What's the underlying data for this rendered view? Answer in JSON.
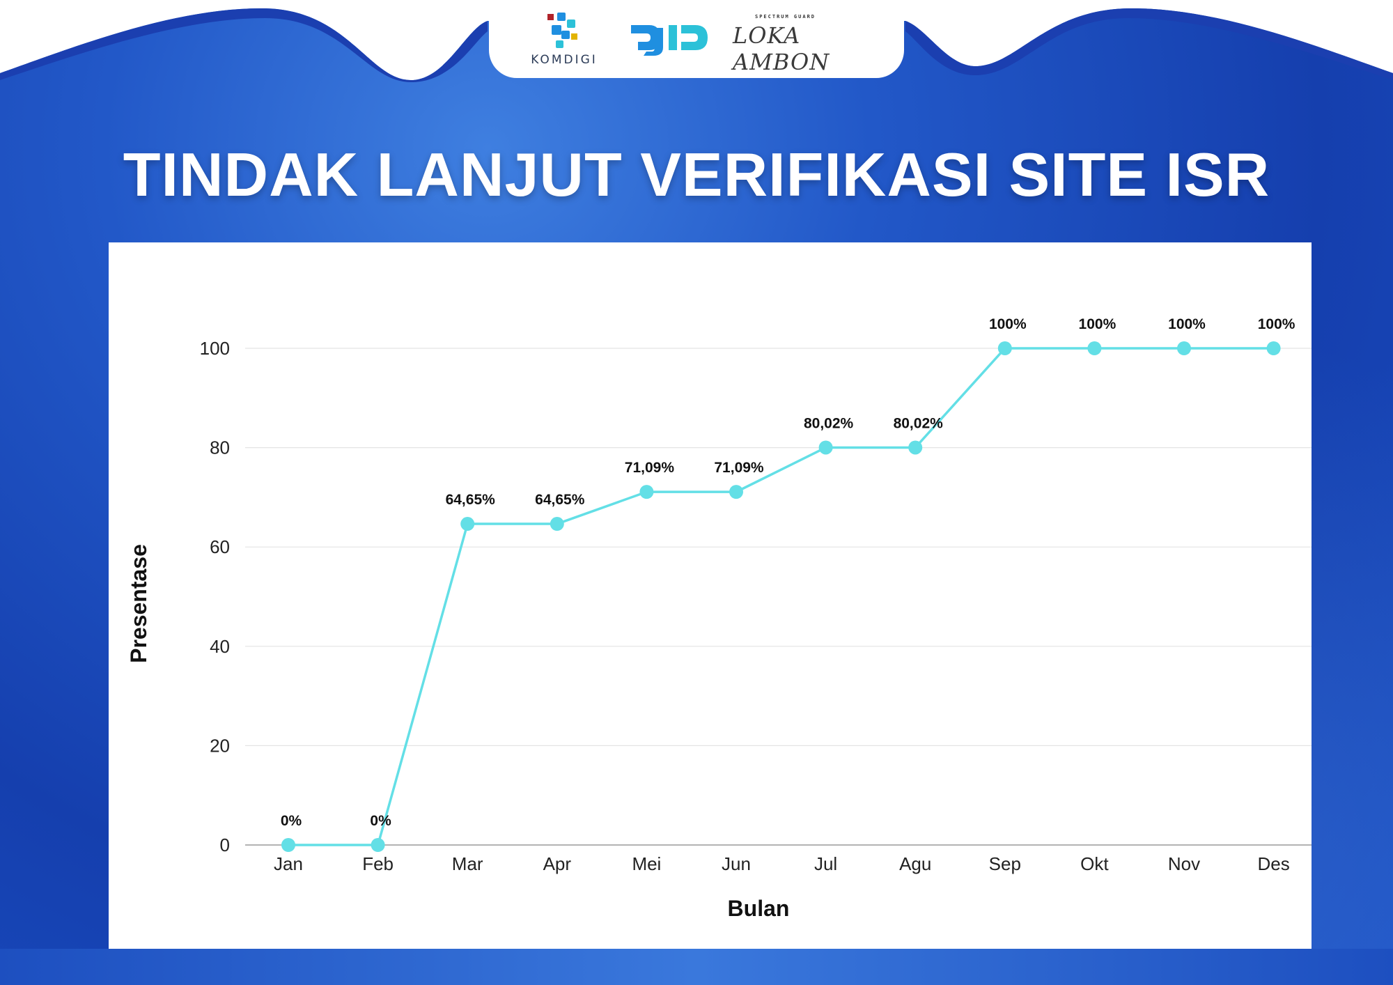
{
  "header": {
    "logos": [
      {
        "name": "komdigi-logo",
        "text": "KOMDIGI",
        "colors": [
          "#1f8fe0",
          "#2cc1d8",
          "#e2b400",
          "#b0232a"
        ]
      },
      {
        "name": "djid-logo",
        "colors": [
          "#1f8fe0",
          "#2cc1d8"
        ]
      },
      {
        "name": "loka-monitor-ambon-logo",
        "small_text": "SPECTRUM GUARD",
        "text": "LOKA AMBON"
      }
    ]
  },
  "title": "TINDAK LANJUT VERIFIKASI SITE ISR",
  "colors": {
    "background": "#1f4fc2",
    "line": "#63dfe6",
    "marker": "#63dfe6",
    "grid": "#e4e4e4",
    "panel": "#ffffff"
  },
  "chart_data": {
    "type": "line",
    "title": "",
    "xlabel": "Bulan",
    "ylabel": "Presentase",
    "categories": [
      "Jan",
      "Feb",
      "Mar",
      "Apr",
      "Mei",
      "Jun",
      "Jul",
      "Agu",
      "Sep",
      "Okt",
      "Nov",
      "Des"
    ],
    "values": [
      0,
      0,
      64.65,
      64.65,
      71.09,
      71.09,
      80.02,
      80.02,
      100,
      100,
      100,
      100
    ],
    "data_labels": [
      "0%",
      "0%",
      "64,65%",
      "64,65%",
      "71,09%",
      "71,09%",
      "80,02%",
      "80,02%",
      "100%",
      "100%",
      "100%",
      "100%"
    ],
    "yticks": [
      0,
      20,
      40,
      60,
      80,
      100
    ],
    "ylim": [
      0,
      100
    ],
    "grid": true,
    "legend": "none"
  }
}
